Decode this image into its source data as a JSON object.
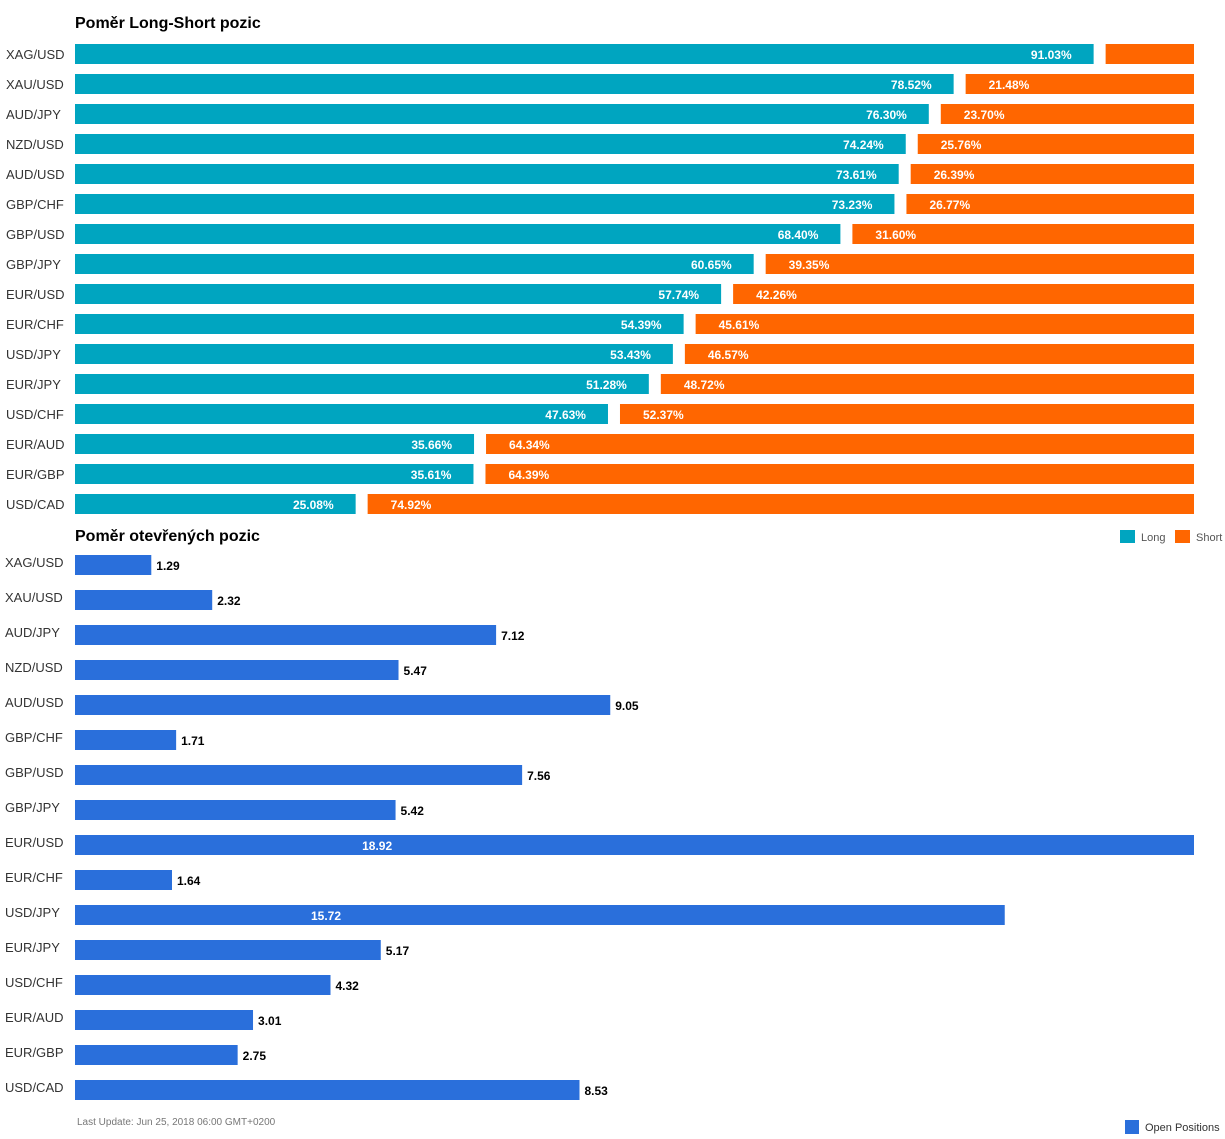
{
  "chart_data": [
    {
      "type": "bar",
      "orientation": "horizontal",
      "stacked": true,
      "title": "Poměr Long-Short pozic",
      "categories": [
        "XAG/USD",
        "XAU/USD",
        "AUD/JPY",
        "NZD/USD",
        "AUD/USD",
        "GBP/CHF",
        "GBP/USD",
        "GBP/JPY",
        "EUR/USD",
        "EUR/CHF",
        "USD/JPY",
        "EUR/JPY",
        "USD/CHF",
        "EUR/AUD",
        "EUR/GBP",
        "USD/CAD"
      ],
      "series": [
        {
          "name": "Long",
          "values": [
            91.03,
            78.52,
            76.3,
            74.24,
            73.61,
            73.23,
            68.4,
            60.65,
            57.74,
            54.39,
            53.43,
            51.28,
            47.63,
            35.66,
            35.61,
            25.08
          ],
          "color": "#00a5c0"
        },
        {
          "name": "Short",
          "values": [
            8.97,
            21.48,
            23.7,
            25.76,
            26.39,
            26.77,
            31.6,
            39.35,
            42.26,
            45.61,
            46.57,
            48.72,
            52.37,
            64.34,
            64.39,
            74.92
          ],
          "color": "#ff6600"
        }
      ],
      "data_labels": {
        "Long": [
          "91.03%",
          "78.52%",
          "76.30%",
          "74.24%",
          "73.61%",
          "73.23%",
          "68.40%",
          "60.65%",
          "57.74%",
          "54.39%",
          "53.43%",
          "51.28%",
          "47.63%",
          "35.66%",
          "35.61%",
          "25.08%"
        ],
        "Short": [
          "",
          "21.48%",
          "23.70%",
          "25.76%",
          "26.39%",
          "26.77%",
          "31.60%",
          "39.35%",
          "42.26%",
          "45.61%",
          "46.57%",
          "48.72%",
          "52.37%",
          "64.34%",
          "64.39%",
          "74.92%"
        ]
      },
      "legend": {
        "position": "bottom-right",
        "entries": [
          "Long",
          "Short"
        ]
      },
      "xlim": [
        0,
        100
      ]
    },
    {
      "type": "bar",
      "orientation": "horizontal",
      "title": "Poměr otevřených pozic",
      "categories": [
        "XAG/USD",
        "XAU/USD",
        "AUD/JPY",
        "NZD/USD",
        "AUD/USD",
        "GBP/CHF",
        "GBP/USD",
        "GBP/JPY",
        "EUR/USD",
        "EUR/CHF",
        "USD/JPY",
        "EUR/JPY",
        "USD/CHF",
        "EUR/AUD",
        "EUR/GBP",
        "USD/CAD"
      ],
      "series": [
        {
          "name": "Open Positions",
          "values": [
            1.29,
            2.32,
            7.12,
            5.47,
            9.05,
            1.71,
            7.56,
            5.42,
            18.92,
            1.64,
            15.72,
            5.17,
            4.32,
            3.01,
            2.75,
            8.53
          ],
          "color": "#2a6fdb"
        }
      ],
      "data_labels": [
        "1.29",
        "2.32",
        "7.12",
        "5.47",
        "9.05",
        "1.71",
        "7.56",
        "5.42",
        "18.92",
        "1.64",
        "15.72",
        "5.17",
        "4.32",
        "3.01",
        "2.75",
        "8.53"
      ],
      "legend": {
        "position": "bottom-right",
        "entries": [
          "Open Positions"
        ]
      },
      "xlim": [
        0,
        18.92
      ]
    }
  ],
  "footer": {
    "last_update": "Last Update: Jun 25, 2018 06:00 GMT+0200"
  }
}
